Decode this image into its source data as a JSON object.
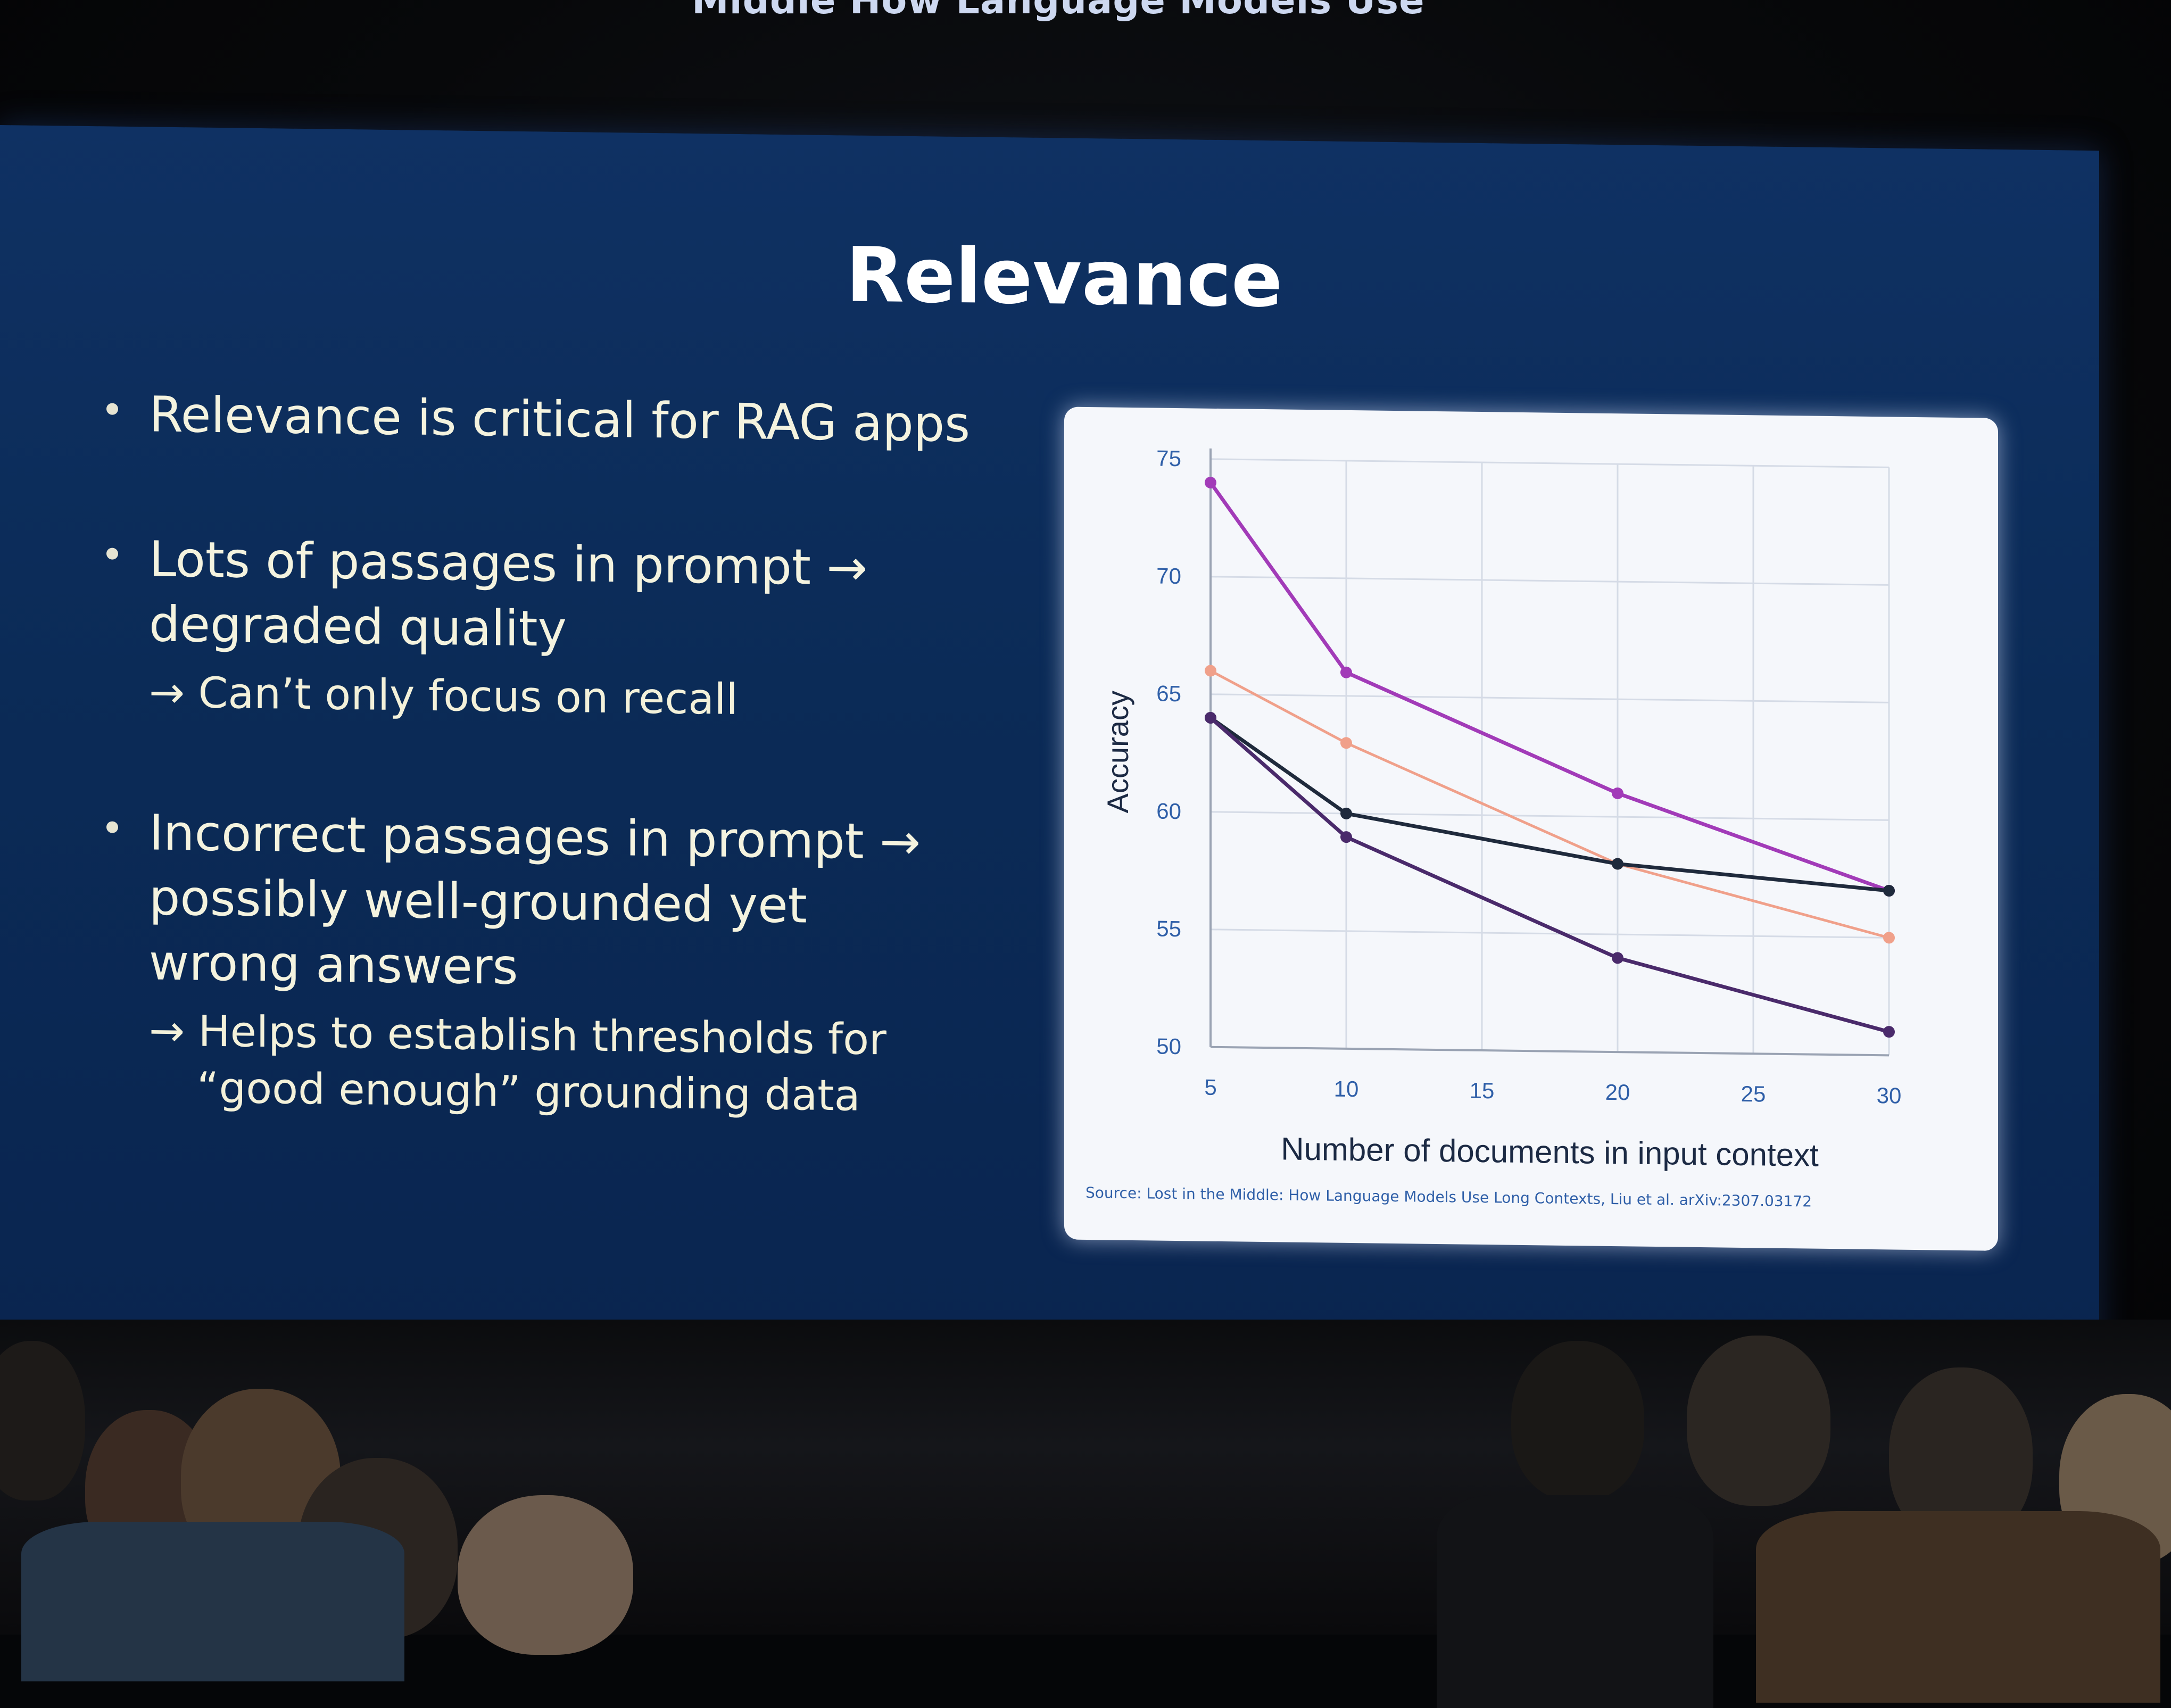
{
  "caption_strip": "Middle How Language Models Use Long Contexts",
  "slide": {
    "title": "Relevance",
    "bullets": [
      {
        "main": [
          "Relevance is critical for RAG apps"
        ],
        "sub": []
      },
      {
        "main": [
          "Lots of passages in prompt →",
          "degraded quality"
        ],
        "sub": [
          "→ Can’t only focus on recall"
        ]
      },
      {
        "main": [
          "Incorrect passages in prompt →",
          "possibly well-grounded yet",
          "wrong answers"
        ],
        "sub": [
          "→ Helps to establish thresholds for",
          "“good enough” grounding data"
        ]
      }
    ],
    "source": "Source: Lost in the Middle: How Language Models Use Long Contexts, Liu et al. arXiv:2307.03172"
  },
  "chart_data": {
    "type": "line",
    "xlabel": "Number of documents in input context",
    "ylabel": "Accuracy",
    "x": [
      5,
      10,
      20,
      30
    ],
    "xticks": [
      5,
      10,
      15,
      20,
      25,
      30
    ],
    "yticks": [
      50,
      55,
      60,
      65,
      70,
      75
    ],
    "xlim": [
      5,
      30
    ],
    "ylim": [
      50,
      75
    ],
    "grid": true,
    "series": [
      {
        "values": [
          74,
          66,
          61,
          57
        ],
        "color": "#a23bb8"
      },
      {
        "values": [
          66,
          63,
          58,
          55
        ],
        "color": "#f0a08a"
      },
      {
        "values": [
          64,
          60,
          58,
          57
        ],
        "color": "#1f2a3c"
      },
      {
        "values": [
          64,
          59,
          54,
          51
        ],
        "color": "#4a2a6b"
      }
    ]
  },
  "colors": {
    "slide_bg": "#0b2b57",
    "text": "#f4f3df",
    "card_bg": "#f5f7fb"
  }
}
